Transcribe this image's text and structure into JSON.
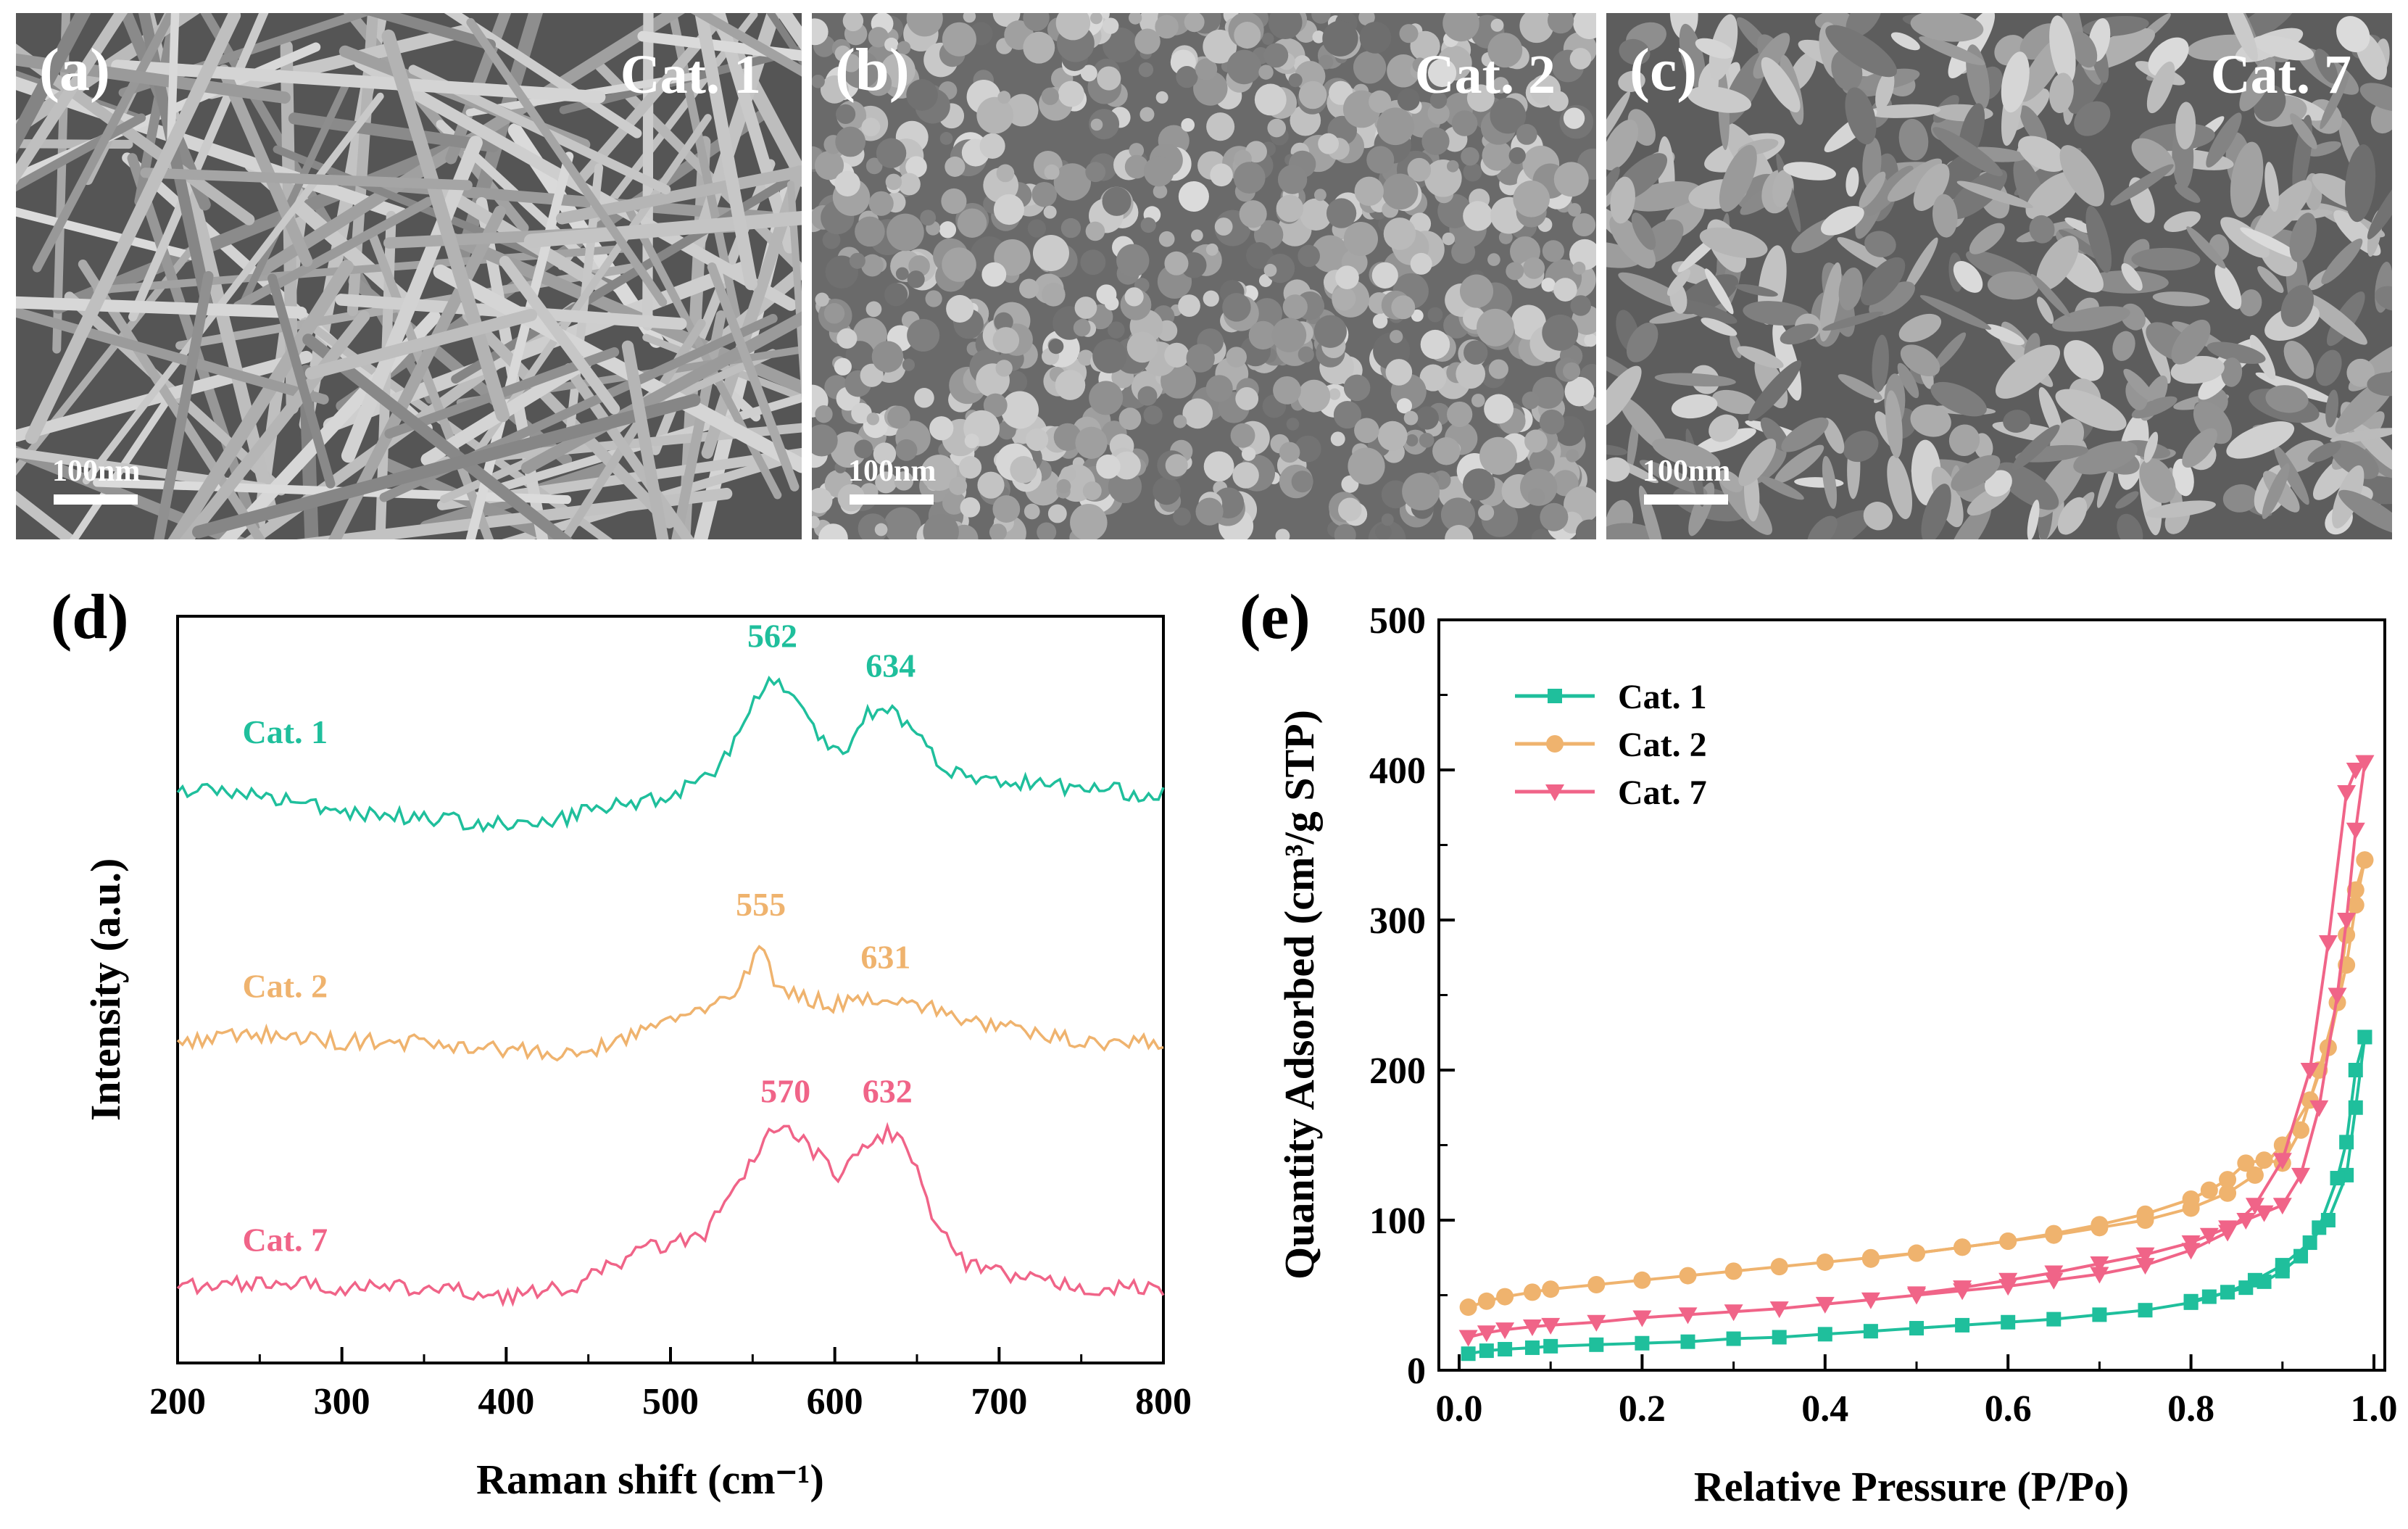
{
  "panels": {
    "a": {
      "label": "(a)",
      "catalyst": "Cat. 1",
      "scale": "100nm"
    },
    "b": {
      "label": "(b)",
      "catalyst": "Cat. 2",
      "scale": "100nm"
    },
    "c": {
      "label": "(c)",
      "catalyst": "Cat. 7",
      "scale": "100nm"
    }
  },
  "colors": {
    "cat1": "#1fbf9c",
    "cat2": "#efb36e",
    "cat7": "#f06488"
  },
  "chart_data": [
    {
      "panel_label": "(d)",
      "type": "line",
      "xlabel": "Raman shift  (cm⁻¹)",
      "ylabel": "Intensity (a.u.)",
      "xlim": [
        200,
        800
      ],
      "xticks": [
        "200",
        "300",
        "400",
        "500",
        "600",
        "700",
        "800"
      ],
      "series": [
        {
          "name": "Cat. 1",
          "color": "#1fbf9c",
          "x": [
            200,
            250,
            300,
            350,
            400,
            420,
            450,
            500,
            530,
            550,
            562,
            575,
            590,
            605,
            620,
            634,
            650,
            670,
            700,
            750,
            800
          ],
          "y": [
            0.77,
            0.76,
            0.74,
            0.73,
            0.72,
            0.72,
            0.74,
            0.76,
            0.8,
            0.88,
            0.92,
            0.89,
            0.84,
            0.82,
            0.87,
            0.88,
            0.84,
            0.79,
            0.78,
            0.77,
            0.76
          ],
          "peaks": [
            {
              "x": 562,
              "label": "562"
            },
            {
              "x": 634,
              "label": "634"
            }
          ],
          "label_x": 250,
          "label_y": 0.83
        },
        {
          "name": "Cat. 2",
          "color": "#efb36e",
          "x": [
            200,
            250,
            300,
            350,
            400,
            440,
            480,
            510,
            540,
            555,
            565,
            580,
            600,
            620,
            631,
            650,
            680,
            720,
            760,
            800
          ],
          "y": [
            0.43,
            0.44,
            0.43,
            0.43,
            0.42,
            0.41,
            0.44,
            0.47,
            0.49,
            0.56,
            0.5,
            0.49,
            0.48,
            0.49,
            0.49,
            0.48,
            0.46,
            0.44,
            0.43,
            0.43
          ],
          "peaks": [
            {
              "x": 555,
              "label": "555"
            },
            {
              "x": 631,
              "label": "631"
            }
          ],
          "label_x": 250,
          "label_y": 0.49
        },
        {
          "name": "Cat. 7",
          "color": "#f06488",
          "x": [
            200,
            250,
            300,
            350,
            400,
            440,
            480,
            520,
            545,
            560,
            570,
            585,
            600,
            620,
            632,
            645,
            660,
            680,
            720,
            760,
            800
          ],
          "y": [
            0.1,
            0.11,
            0.1,
            0.1,
            0.09,
            0.1,
            0.15,
            0.17,
            0.25,
            0.31,
            0.31,
            0.29,
            0.25,
            0.29,
            0.31,
            0.29,
            0.19,
            0.13,
            0.11,
            0.1,
            0.1
          ],
          "peaks": [
            {
              "x": 570,
              "label": "570"
            },
            {
              "x": 632,
              "label": "632"
            }
          ],
          "label_x": 250,
          "label_y": 0.15
        }
      ]
    },
    {
      "panel_label": "(e)",
      "type": "line",
      "xlabel": "Relative Pressure (P/Po)",
      "ylabel": "Quantity Adsorbed (cm³/g STP)",
      "xlim": [
        0,
        1.0
      ],
      "ylim": [
        0,
        500
      ],
      "xticks": [
        "0.0",
        "0.2",
        "0.4",
        "0.6",
        "0.8",
        "1.0"
      ],
      "yticks": [
        "0",
        "100",
        "200",
        "300",
        "400",
        "500"
      ],
      "legend": "top-left",
      "series": [
        {
          "name": "Cat. 1",
          "color": "#1fbf9c",
          "marker": "square",
          "adsorption": {
            "x": [
              0.01,
              0.03,
              0.05,
              0.08,
              0.1,
              0.15,
              0.2,
              0.25,
              0.3,
              0.35,
              0.4,
              0.45,
              0.5,
              0.55,
              0.6,
              0.65,
              0.7,
              0.75,
              0.8,
              0.84,
              0.87,
              0.9,
              0.93,
              0.95,
              0.97,
              0.98,
              0.99
            ],
            "y": [
              11,
              13,
              14,
              15,
              16,
              17,
              18,
              19,
              21,
              22,
              24,
              26,
              28,
              30,
              32,
              34,
              37,
              40,
              45,
              52,
              60,
              70,
              85,
              100,
              130,
              175,
              222
            ]
          },
          "desorption": {
            "x": [
              0.99,
              0.98,
              0.97,
              0.96,
              0.94,
              0.92,
              0.9,
              0.88,
              0.86,
              0.84,
              0.82,
              0.8
            ],
            "y": [
              222,
              200,
              152,
              128,
              95,
              76,
              66,
              59,
              55,
              52,
              49,
              46
            ]
          }
        },
        {
          "name": "Cat. 2",
          "color": "#efb36e",
          "marker": "circle",
          "adsorption": {
            "x": [
              0.01,
              0.03,
              0.05,
              0.08,
              0.1,
              0.15,
              0.2,
              0.25,
              0.3,
              0.35,
              0.4,
              0.45,
              0.5,
              0.55,
              0.6,
              0.65,
              0.7,
              0.75,
              0.8,
              0.84,
              0.87,
              0.9,
              0.93,
              0.95,
              0.97,
              0.98,
              0.99
            ],
            "y": [
              42,
              46,
              49,
              52,
              54,
              57,
              60,
              63,
              66,
              69,
              72,
              75,
              78,
              82,
              86,
              90,
              95,
              100,
              108,
              118,
              130,
              150,
              180,
              215,
              270,
              310,
              340
            ]
          },
          "desorption": {
            "x": [
              0.99,
              0.98,
              0.97,
              0.96,
              0.94,
              0.92,
              0.9,
              0.88,
              0.86,
              0.84,
              0.82,
              0.8,
              0.75,
              0.7,
              0.65,
              0.6,
              0.55,
              0.5,
              0.45
            ],
            "y": [
              340,
              320,
              290,
              245,
              200,
              160,
              138,
              140,
              138,
              127,
              120,
              114,
              104,
              97,
              91,
              86,
              82,
              78,
              74
            ]
          }
        },
        {
          "name": "Cat. 7",
          "color": "#f06488",
          "marker": "triangle-down",
          "adsorption": {
            "x": [
              0.01,
              0.03,
              0.05,
              0.08,
              0.1,
              0.15,
              0.2,
              0.25,
              0.3,
              0.35,
              0.4,
              0.45,
              0.5,
              0.55,
              0.6,
              0.65,
              0.7,
              0.75,
              0.8,
              0.84,
              0.87,
              0.9,
              0.93,
              0.95,
              0.97,
              0.98,
              0.99
            ],
            "y": [
              22,
              25,
              27,
              29,
              30,
              32,
              35,
              37,
              39,
              41,
              44,
              47,
              50,
              53,
              56,
              60,
              64,
              70,
              80,
              92,
              110,
              140,
              200,
              285,
              385,
              400,
              405
            ]
          },
          "desorption": {
            "x": [
              0.99,
              0.98,
              0.97,
              0.96,
              0.94,
              0.92,
              0.9,
              0.88,
              0.86,
              0.84,
              0.82,
              0.8,
              0.75,
              0.7,
              0.65,
              0.6,
              0.55,
              0.5
            ],
            "y": [
              405,
              360,
              300,
              250,
              175,
              130,
              110,
              105,
              100,
              95,
              90,
              85,
              77,
              71,
              65,
              60,
              55,
              51
            ]
          }
        }
      ]
    }
  ]
}
